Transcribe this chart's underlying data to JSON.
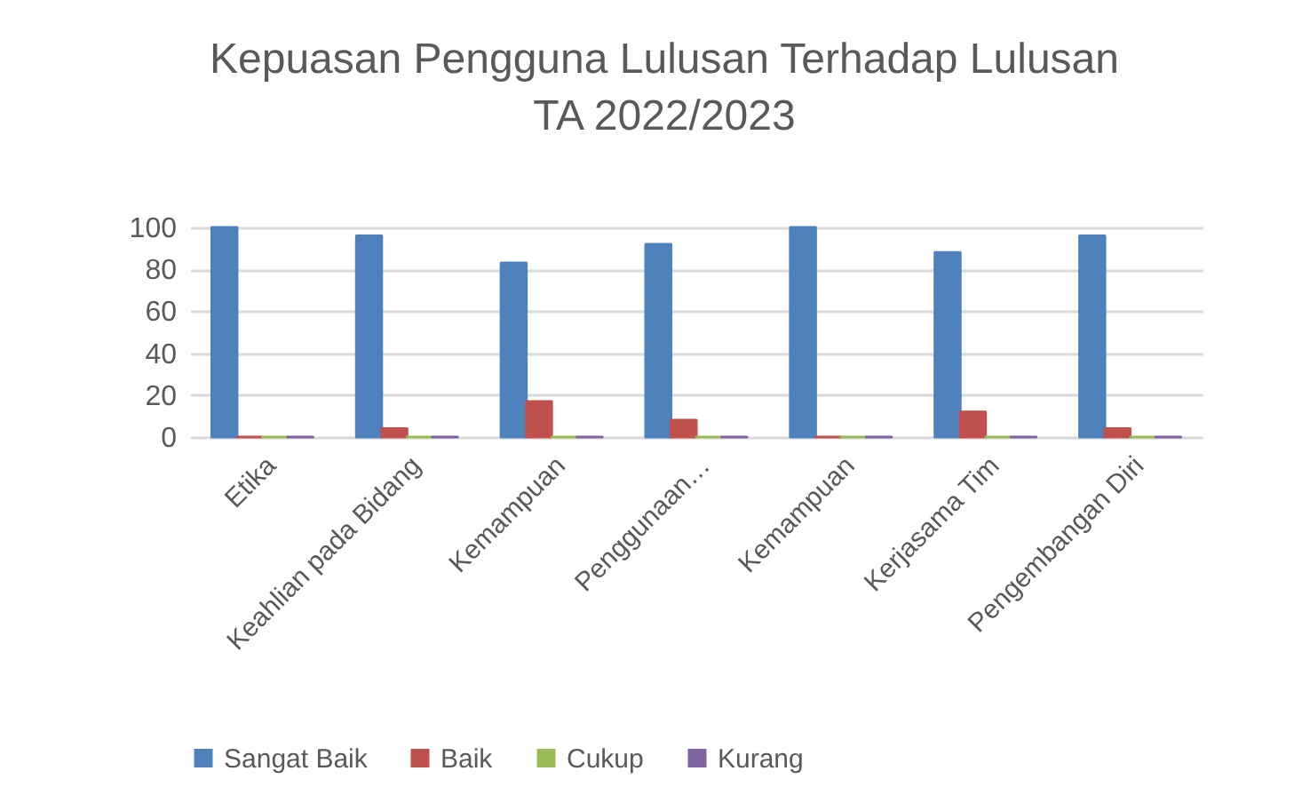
{
  "chart_data": {
    "type": "bar",
    "title": "Kepuasan Pengguna Lulusan Terhadap Lulusan TA 2022/2023",
    "categories": [
      "Etika",
      "Keahlian pada Bidang",
      "Kemampuan",
      "Penggunaan…",
      "Kemampuan",
      "Kerjasama Tim",
      "Pengembangan Diri"
    ],
    "series": [
      {
        "name": "Sangat Baik",
        "color": "#4f81bd",
        "values": [
          100,
          96,
          83,
          92,
          100,
          88,
          96
        ]
      },
      {
        "name": "Baik",
        "color": "#c0504d",
        "values": [
          0,
          4,
          17,
          8,
          0,
          12,
          4
        ]
      },
      {
        "name": "Cukup",
        "color": "#9bbb59",
        "values": [
          0,
          0,
          0,
          0,
          0,
          0,
          0
        ]
      },
      {
        "name": "Kurang",
        "color": "#8064a2",
        "values": [
          0,
          0,
          0,
          0,
          0,
          0,
          0
        ]
      }
    ],
    "ylim": [
      0,
      100
    ],
    "yticks": [
      0,
      20,
      40,
      60,
      80,
      100
    ],
    "grid": "y",
    "legend": "bottom"
  }
}
